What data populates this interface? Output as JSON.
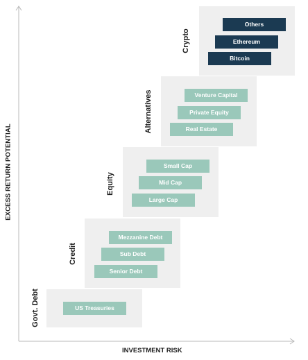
{
  "axes": {
    "y_label": "EXCESS RETURN POTENTIAL",
    "x_label": "INVESTMENT RISK"
  },
  "colors": {
    "box": "#efefef",
    "asset_light": "#9ac8ba",
    "asset_dark": "#1b3a52",
    "axis": "#b8b8b8"
  },
  "groups": [
    {
      "label": "Govt. Debt",
      "assets": [
        "US Treasuries"
      ]
    },
    {
      "label": "Credit",
      "assets": [
        "Mezzanine Debt",
        "Sub Debt",
        "Senior Debt"
      ]
    },
    {
      "label": "Equity",
      "assets": [
        "Small Cap",
        "Mid Cap",
        "Large Cap"
      ]
    },
    {
      "label": "Alternatives",
      "assets": [
        "Venture Capital",
        "Private Equity",
        "Real Estate"
      ]
    },
    {
      "label": "Crypto",
      "assets": [
        "Others",
        "Ethereum",
        "Bitcoin"
      ]
    }
  ]
}
